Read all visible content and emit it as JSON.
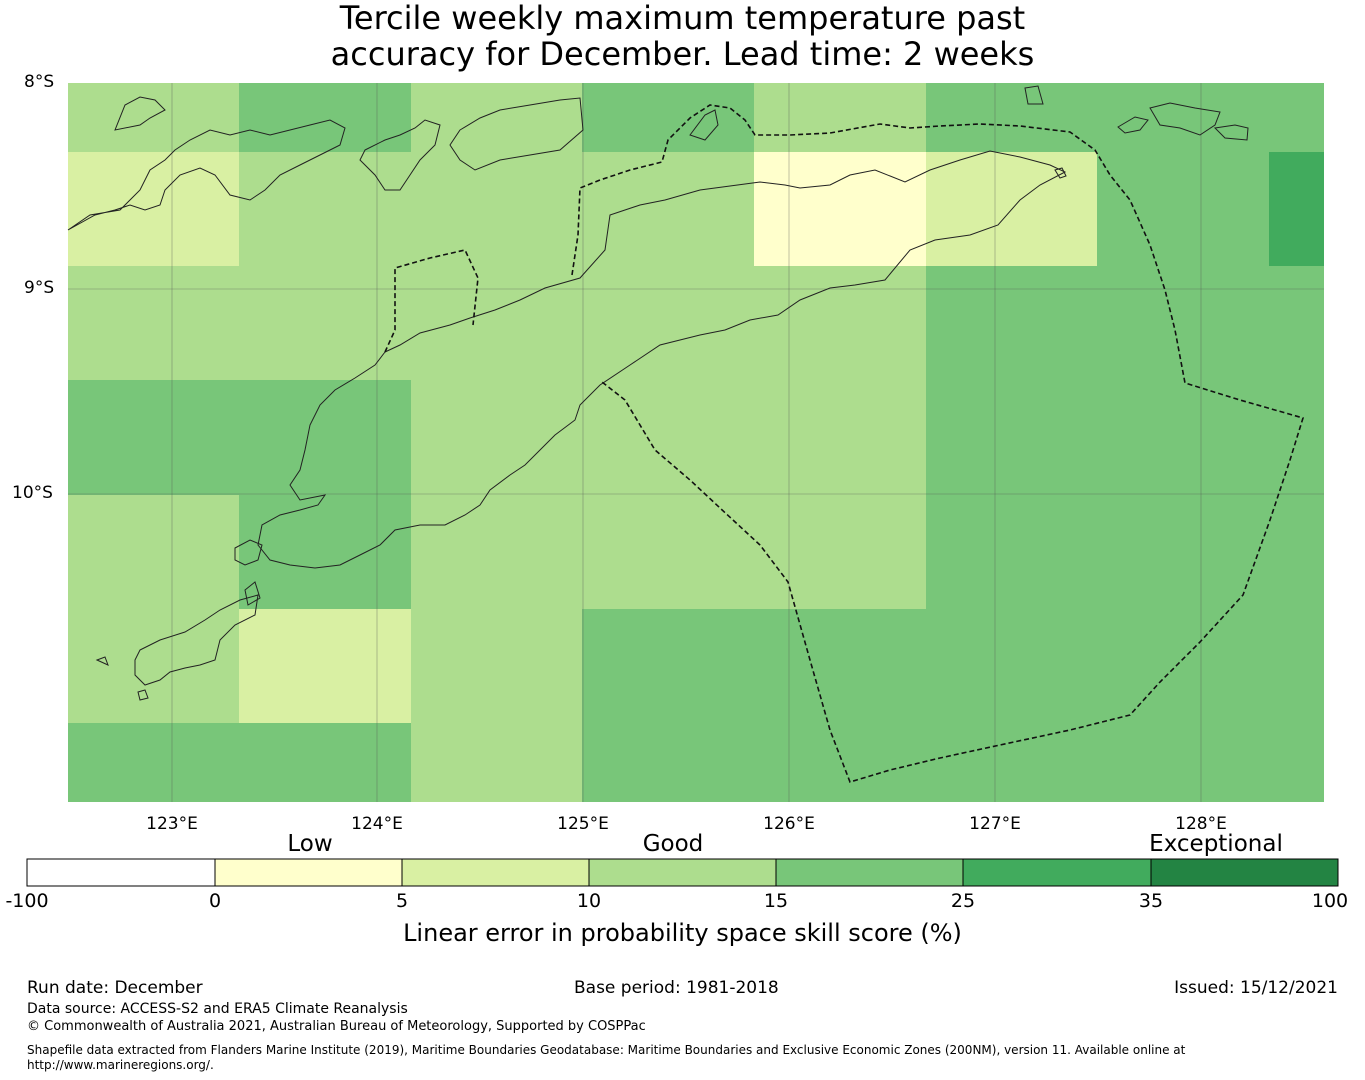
{
  "title_line1": "Tercile weekly maximum temperature past",
  "title_line2": "accuracy for December. Lead time: 2 weeks",
  "lat_labels": [
    "8°S",
    "9°S",
    "10°S"
  ],
  "lon_labels": [
    "123°E",
    "124°E",
    "125°E",
    "126°E",
    "127°E",
    "128°E"
  ],
  "categories": [
    "Low",
    "Good",
    "Exceptional"
  ],
  "colorbar": {
    "ticks": [
      "-100",
      "0",
      "5",
      "10",
      "15",
      "25",
      "35",
      "100"
    ],
    "colors": [
      "#ffffff",
      "#ffffcc",
      "#d9f0a3",
      "#addd8e",
      "#78c679",
      "#41ab5d",
      "#238443"
    ],
    "label": "Linear error in probability space skill score (%)"
  },
  "footer": {
    "run_date": "Run date: December",
    "base_period": "Base period: 1981-2018",
    "issued": "Issued: 15/12/2021",
    "data_source": "Data source: ACCESS-S2 and ERA5 Climate Reanalysis",
    "copyright": "© Commonwealth of Australia 2021, Australian Bureau of Meteorology, Supported by COSPPac",
    "shapefile_line1": "Shapefile data extracted from Flanders Marine Institute (2019), Maritime Boundaries Geodatabase: Maritime Boundaries and Exclusive Economic Zones (200NM), version 11. Available online at",
    "shapefile_line2": "http://www.marineregions.org/."
  }
}
